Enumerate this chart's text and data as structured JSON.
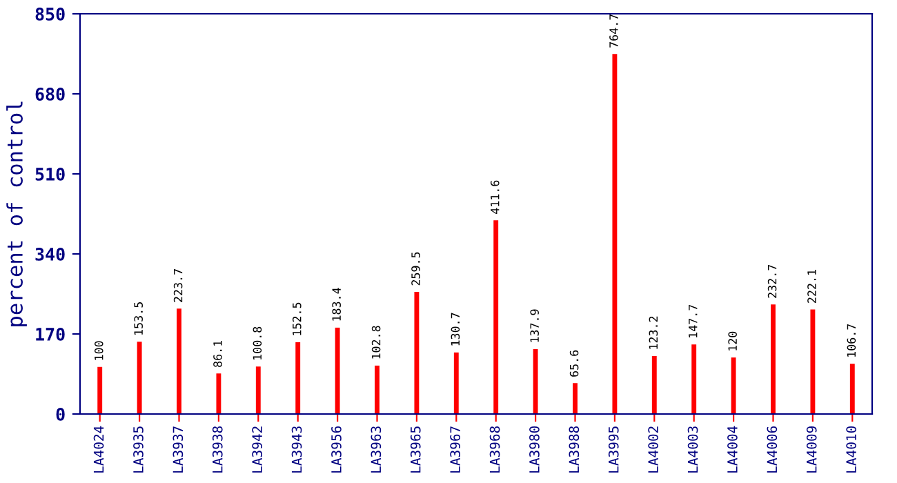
{
  "chart_data": {
    "type": "bar",
    "ylabel": "percent of control",
    "categories": [
      "LA4024",
      "LA3935",
      "LA3937",
      "LA3938",
      "LA3942",
      "LA3943",
      "LA3956",
      "LA3963",
      "LA3965",
      "LA3967",
      "LA3968",
      "LA3980",
      "LA3988",
      "LA3995",
      "LA4002",
      "LA4003",
      "LA4004",
      "LA4006",
      "LA4009",
      "LA4010"
    ],
    "values": [
      100,
      153.5,
      223.7,
      86.1,
      100.8,
      152.5,
      183.4,
      102.8,
      259.5,
      130.7,
      411.6,
      137.9,
      65.6,
      764.7,
      123.2,
      147.7,
      120,
      232.7,
      222.1,
      106.7
    ],
    "color": "#ff0000",
    "ylim": [
      0,
      850
    ],
    "yticks": [
      0,
      170,
      340,
      510,
      680,
      850
    ],
    "grid": false,
    "data_labels": true
  }
}
